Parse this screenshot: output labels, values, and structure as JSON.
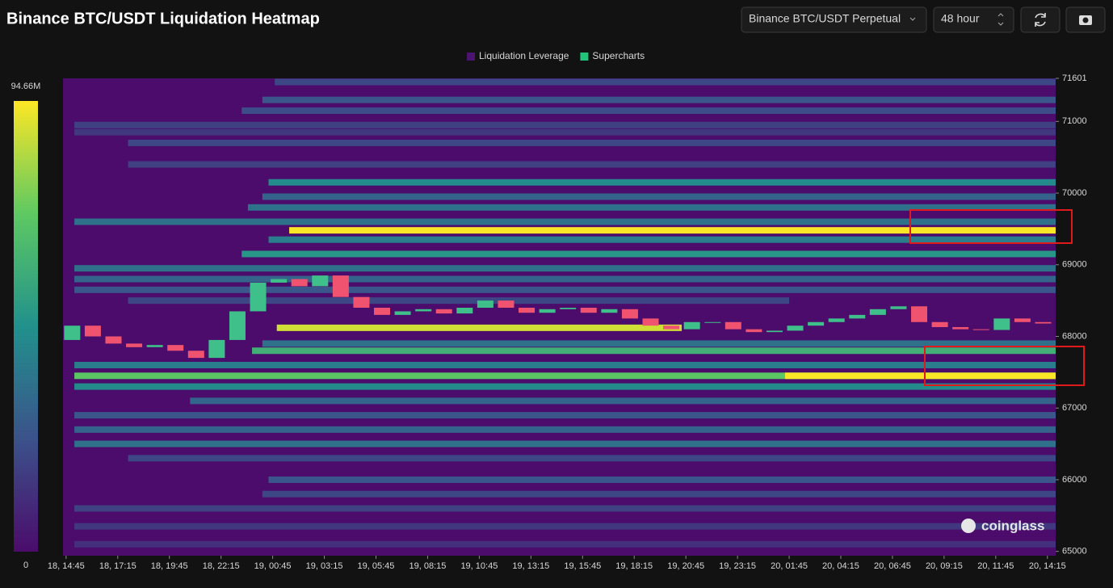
{
  "header": {
    "title": "Binance BTC/USDT Liquidation Heatmap",
    "exchange_select": "Binance BTC/USDT Perpetual",
    "range_select": "48 hour"
  },
  "watermark": "coinglass",
  "chart_data": {
    "type": "heatmap",
    "legend": [
      {
        "name": "Liquidation Leverage",
        "color": "#4a1470"
      },
      {
        "name": "Supercharts",
        "color": "#22c47a"
      }
    ],
    "colorbar": {
      "ticks": [
        {
          "value": 94.66,
          "label": "94.66M"
        },
        0
      ],
      "stops": [
        "#4b0c6b",
        "#3b528b",
        "#21918c",
        "#5ec962",
        "#fde725"
      ]
    },
    "xlim": [
      -0.15,
      47.9
    ],
    "xticks": [
      {
        "value": 0,
        "label": "18, 14:45"
      },
      {
        "value": 2.5,
        "label": "18, 17:15"
      },
      {
        "value": 5,
        "label": "18, 19:45"
      },
      {
        "value": 7.5,
        "label": "18, 22:15"
      },
      {
        "value": 10,
        "label": "19, 00:45"
      },
      {
        "value": 12.5,
        "label": "19, 03:15"
      },
      {
        "value": 15,
        "label": "19, 05:45"
      },
      {
        "value": 17.5,
        "label": "19, 08:15"
      },
      {
        "value": 20,
        "label": "19, 10:45"
      },
      {
        "value": 22.5,
        "label": "19, 13:15"
      },
      {
        "value": 25,
        "label": "19, 15:45"
      },
      {
        "value": 27.5,
        "label": "19, 18:15"
      },
      {
        "value": 30,
        "label": "19, 20:45"
      },
      {
        "value": 32.5,
        "label": "19, 23:15"
      },
      {
        "value": 35,
        "label": "20, 01:45"
      },
      {
        "value": 37.5,
        "label": "20, 04:15"
      },
      {
        "value": 40,
        "label": "20, 06:45"
      },
      {
        "value": 42.5,
        "label": "20, 09:15"
      },
      {
        "value": 45,
        "label": "20, 11:45"
      },
      {
        "value": 47.5,
        "label": "20, 14:15"
      }
    ],
    "ylim": [
      64940,
      71601
    ],
    "yticks": [
      65000,
      66000,
      67000,
      68000,
      69000,
      70000,
      71000,
      71601
    ],
    "bands": [
      {
        "price": 71550,
        "start": 10.1,
        "end": 47.9,
        "value": 20
      },
      {
        "price": 71300,
        "start": 9.5,
        "end": 47.9,
        "value": 25
      },
      {
        "price": 71150,
        "start": 8.5,
        "end": 47.9,
        "value": 22
      },
      {
        "price": 70950,
        "start": 0.4,
        "end": 47.9,
        "value": 18
      },
      {
        "price": 70850,
        "start": 0.4,
        "end": 47.9,
        "value": 15
      },
      {
        "price": 70700,
        "start": 3,
        "end": 47.9,
        "value": 20
      },
      {
        "price": 70400,
        "start": 3,
        "end": 47.9,
        "value": 18
      },
      {
        "price": 70150,
        "start": 9.8,
        "end": 47.9,
        "value": 45
      },
      {
        "price": 69950,
        "start": 9.5,
        "end": 47.9,
        "value": 30
      },
      {
        "price": 69800,
        "start": 8.8,
        "end": 47.9,
        "value": 35
      },
      {
        "price": 69600,
        "start": 0.4,
        "end": 47.9,
        "value": 35
      },
      {
        "price": 69480,
        "start": 10.8,
        "end": 47.9,
        "value": 94
      },
      {
        "price": 69350,
        "start": 9.8,
        "end": 47.9,
        "value": 40
      },
      {
        "price": 69150,
        "start": 8.5,
        "end": 47.9,
        "value": 50
      },
      {
        "price": 68950,
        "start": 0.4,
        "end": 47.9,
        "value": 35
      },
      {
        "price": 68800,
        "start": 0.4,
        "end": 47.9,
        "value": 30
      },
      {
        "price": 68650,
        "start": 0.4,
        "end": 47.9,
        "value": 25
      },
      {
        "price": 68500,
        "start": 3,
        "end": 35,
        "value": 20
      },
      {
        "price": 68120,
        "start": 10.2,
        "end": 29.8,
        "value": 88
      },
      {
        "price": 67900,
        "start": 9.5,
        "end": 47.9,
        "value": 35
      },
      {
        "price": 67800,
        "start": 9.0,
        "end": 47.9,
        "value": 60
      },
      {
        "price": 67600,
        "start": 0.4,
        "end": 47.9,
        "value": 40
      },
      {
        "price": 67450,
        "start": 0.4,
        "end": 47.9,
        "value": 70
      },
      {
        "price": 67450,
        "start": 34.8,
        "end": 47.9,
        "value": 94
      },
      {
        "price": 67300,
        "start": 0.4,
        "end": 47.9,
        "value": 45
      },
      {
        "price": 67100,
        "start": 6,
        "end": 47.9,
        "value": 30
      },
      {
        "price": 66900,
        "start": 0.4,
        "end": 47.9,
        "value": 25
      },
      {
        "price": 66700,
        "start": 0.4,
        "end": 47.9,
        "value": 30
      },
      {
        "price": 66500,
        "start": 0.4,
        "end": 47.9,
        "value": 35
      },
      {
        "price": 66300,
        "start": 3,
        "end": 47.9,
        "value": 20
      },
      {
        "price": 66000,
        "start": 9.8,
        "end": 47.9,
        "value": 25
      },
      {
        "price": 65800,
        "start": 9.5,
        "end": 47.9,
        "value": 20
      },
      {
        "price": 65600,
        "start": 0.4,
        "end": 47.9,
        "value": 18
      },
      {
        "price": 65350,
        "start": 0.4,
        "end": 47.9,
        "value": 15
      },
      {
        "price": 65100,
        "start": 0.4,
        "end": 47.9,
        "value": 12
      }
    ],
    "candles": {
      "up_color": "#3fbf8a",
      "down_color": "#ef5370",
      "x": [
        0,
        1,
        2,
        3,
        4,
        5,
        6,
        7,
        8,
        9,
        10,
        11,
        12,
        13,
        14,
        15,
        16,
        17,
        18,
        19,
        20,
        21,
        22,
        23,
        24,
        25,
        26,
        27,
        28,
        29,
        30,
        31,
        32,
        33,
        34,
        35,
        36,
        37,
        38,
        39,
        40,
        41,
        42,
        43,
        44,
        45,
        46,
        47
      ],
      "open": [
        67950,
        68150,
        68000,
        67900,
        67850,
        67880,
        67800,
        67700,
        67950,
        68350,
        68750,
        68800,
        68700,
        68850,
        68550,
        68400,
        68300,
        68350,
        68380,
        68320,
        68400,
        68500,
        68400,
        68330,
        68380,
        68400,
        68330,
        68380,
        68250,
        68150,
        68100,
        68200,
        68200,
        68100,
        68060,
        68080,
        68150,
        68200,
        68250,
        68300,
        68380,
        68420,
        68200,
        68130,
        68100,
        68090,
        68250,
        68200
      ],
      "close": [
        68150,
        68000,
        67900,
        67850,
        67880,
        67800,
        67700,
        67950,
        68350,
        68750,
        68800,
        68700,
        68850,
        68550,
        68400,
        68300,
        68350,
        68380,
        68320,
        68400,
        68500,
        68400,
        68330,
        68380,
        68400,
        68330,
        68380,
        68250,
        68150,
        68100,
        68200,
        68200,
        68100,
        68060,
        68080,
        68150,
        68200,
        68250,
        68300,
        68380,
        68420,
        68200,
        68130,
        68100,
        68090,
        68250,
        68200,
        68180
      ]
    }
  }
}
